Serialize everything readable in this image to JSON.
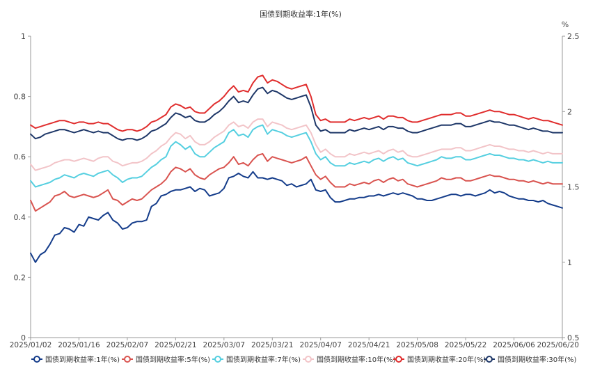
{
  "chart_data": {
    "type": "line",
    "title": "国债到期收益率:1年(%)",
    "left_axis": {
      "ylim": [
        0,
        1
      ],
      "ticks": [
        "0",
        "0.2",
        "0.4",
        "0.6",
        "0.8",
        "1"
      ]
    },
    "right_axis": {
      "unit": "%",
      "ylim": [
        0.5,
        2.5
      ],
      "ticks": [
        "0.5",
        "1",
        "1.5",
        "2",
        "2.5"
      ]
    },
    "x_ticks": [
      "2025/01/02",
      "2025/01/16",
      "2025/02/07",
      "2025/02/21",
      "2025/03/07",
      "2025/03/21",
      "2025/04/07",
      "2025/04/21",
      "2025/05/08",
      "2025/05/22",
      "2025/06/06",
      "2025/06/20"
    ],
    "x_tick_index": [
      0,
      10,
      20,
      30,
      40,
      50,
      60,
      70,
      80,
      90,
      100,
      110
    ],
    "grid": false,
    "legend_position": "bottom",
    "series": [
      {
        "name": "国债到期收益率:1年(%)",
        "axis": "left",
        "color": "#143c8a",
        "values": [
          0.28,
          0.25,
          0.275,
          0.285,
          0.31,
          0.34,
          0.345,
          0.365,
          0.36,
          0.35,
          0.375,
          0.37,
          0.4,
          0.395,
          0.39,
          0.405,
          0.415,
          0.39,
          0.38,
          0.36,
          0.365,
          0.38,
          0.385,
          0.385,
          0.39,
          0.435,
          0.445,
          0.47,
          0.475,
          0.485,
          0.49,
          0.49,
          0.495,
          0.5,
          0.485,
          0.495,
          0.49,
          0.47,
          0.475,
          0.48,
          0.495,
          0.53,
          0.535,
          0.545,
          0.535,
          0.53,
          0.55,
          0.53,
          0.53,
          0.525,
          0.53,
          0.525,
          0.52,
          0.505,
          0.51,
          0.5,
          0.505,
          0.51,
          0.525,
          0.49,
          0.485,
          0.49,
          0.465,
          0.45,
          0.45,
          0.455,
          0.46,
          0.46,
          0.465,
          0.465,
          0.47,
          0.47,
          0.475,
          0.47,
          0.475,
          0.48,
          0.475,
          0.48,
          0.475,
          0.47,
          0.46,
          0.46,
          0.455,
          0.455,
          0.46,
          0.465,
          0.47,
          0.475,
          0.475,
          0.47,
          0.475,
          0.475,
          0.47,
          0.475,
          0.48,
          0.49,
          0.48,
          0.485,
          0.48,
          0.47,
          0.465,
          0.46,
          0.46,
          0.455,
          0.455,
          0.45,
          0.455,
          0.445,
          0.44,
          0.435,
          0.43
        ]
      },
      {
        "name": "国债到期收益率:5年(%)",
        "axis": "right",
        "color": "#d9534f",
        "values": [
          1.41,
          1.34,
          1.36,
          1.38,
          1.4,
          1.44,
          1.45,
          1.47,
          1.44,
          1.43,
          1.44,
          1.45,
          1.44,
          1.43,
          1.44,
          1.46,
          1.48,
          1.42,
          1.41,
          1.38,
          1.4,
          1.42,
          1.41,
          1.42,
          1.45,
          1.48,
          1.5,
          1.52,
          1.55,
          1.6,
          1.63,
          1.62,
          1.6,
          1.62,
          1.58,
          1.56,
          1.55,
          1.58,
          1.6,
          1.62,
          1.63,
          1.66,
          1.7,
          1.65,
          1.66,
          1.64,
          1.68,
          1.71,
          1.72,
          1.67,
          1.7,
          1.69,
          1.68,
          1.67,
          1.66,
          1.67,
          1.68,
          1.7,
          1.64,
          1.58,
          1.55,
          1.57,
          1.53,
          1.5,
          1.5,
          1.5,
          1.52,
          1.51,
          1.52,
          1.53,
          1.52,
          1.54,
          1.55,
          1.53,
          1.55,
          1.56,
          1.54,
          1.55,
          1.52,
          1.51,
          1.5,
          1.51,
          1.52,
          1.53,
          1.54,
          1.56,
          1.55,
          1.55,
          1.56,
          1.56,
          1.54,
          1.54,
          1.55,
          1.56,
          1.57,
          1.58,
          1.57,
          1.57,
          1.56,
          1.55,
          1.55,
          1.54,
          1.54,
          1.53,
          1.54,
          1.53,
          1.52,
          1.53,
          1.52,
          1.52,
          1.52
        ]
      },
      {
        "name": "国债到期收益率:7年(%)",
        "axis": "right",
        "color": "#55cfe0",
        "values": [
          1.54,
          1.5,
          1.51,
          1.52,
          1.53,
          1.55,
          1.56,
          1.58,
          1.57,
          1.56,
          1.58,
          1.59,
          1.58,
          1.57,
          1.59,
          1.6,
          1.61,
          1.58,
          1.56,
          1.53,
          1.55,
          1.56,
          1.56,
          1.57,
          1.6,
          1.63,
          1.65,
          1.68,
          1.7,
          1.77,
          1.8,
          1.78,
          1.75,
          1.77,
          1.72,
          1.7,
          1.7,
          1.73,
          1.76,
          1.78,
          1.8,
          1.86,
          1.88,
          1.84,
          1.85,
          1.83,
          1.88,
          1.9,
          1.91,
          1.85,
          1.88,
          1.87,
          1.86,
          1.84,
          1.83,
          1.84,
          1.85,
          1.86,
          1.8,
          1.72,
          1.68,
          1.7,
          1.66,
          1.64,
          1.64,
          1.64,
          1.66,
          1.65,
          1.66,
          1.67,
          1.66,
          1.68,
          1.69,
          1.67,
          1.69,
          1.7,
          1.68,
          1.69,
          1.66,
          1.65,
          1.64,
          1.65,
          1.66,
          1.67,
          1.68,
          1.7,
          1.69,
          1.69,
          1.7,
          1.7,
          1.68,
          1.68,
          1.69,
          1.7,
          1.71,
          1.72,
          1.71,
          1.71,
          1.7,
          1.69,
          1.69,
          1.68,
          1.68,
          1.67,
          1.68,
          1.67,
          1.66,
          1.67,
          1.66,
          1.66,
          1.66
        ]
      },
      {
        "name": "国债到期收益率:10年(%)",
        "axis": "right",
        "color": "#f2c4c8",
        "values": [
          1.65,
          1.61,
          1.62,
          1.63,
          1.64,
          1.66,
          1.67,
          1.68,
          1.68,
          1.67,
          1.68,
          1.69,
          1.68,
          1.67,
          1.69,
          1.7,
          1.7,
          1.67,
          1.66,
          1.64,
          1.65,
          1.66,
          1.66,
          1.67,
          1.69,
          1.72,
          1.74,
          1.77,
          1.79,
          1.83,
          1.86,
          1.85,
          1.82,
          1.84,
          1.8,
          1.78,
          1.78,
          1.8,
          1.83,
          1.85,
          1.87,
          1.91,
          1.93,
          1.9,
          1.91,
          1.89,
          1.93,
          1.95,
          1.95,
          1.9,
          1.93,
          1.92,
          1.91,
          1.89,
          1.88,
          1.89,
          1.9,
          1.91,
          1.86,
          1.78,
          1.73,
          1.75,
          1.72,
          1.7,
          1.7,
          1.7,
          1.72,
          1.71,
          1.72,
          1.73,
          1.72,
          1.73,
          1.74,
          1.72,
          1.74,
          1.75,
          1.73,
          1.74,
          1.71,
          1.7,
          1.7,
          1.71,
          1.72,
          1.73,
          1.74,
          1.75,
          1.75,
          1.75,
          1.76,
          1.76,
          1.74,
          1.74,
          1.75,
          1.76,
          1.77,
          1.78,
          1.77,
          1.77,
          1.76,
          1.75,
          1.75,
          1.74,
          1.74,
          1.73,
          1.74,
          1.73,
          1.72,
          1.73,
          1.72,
          1.72,
          1.72
        ]
      },
      {
        "name": "国债到期收益率:20年(%)",
        "axis": "right",
        "color": "#e02d2d",
        "values": [
          1.91,
          1.89,
          1.9,
          1.91,
          1.92,
          1.93,
          1.94,
          1.94,
          1.93,
          1.92,
          1.93,
          1.93,
          1.92,
          1.92,
          1.93,
          1.92,
          1.92,
          1.9,
          1.88,
          1.87,
          1.88,
          1.88,
          1.87,
          1.88,
          1.9,
          1.93,
          1.94,
          1.96,
          1.98,
          2.03,
          2.05,
          2.04,
          2.02,
          2.03,
          2.0,
          1.99,
          1.99,
          2.02,
          2.05,
          2.07,
          2.1,
          2.14,
          2.17,
          2.13,
          2.14,
          2.13,
          2.19,
          2.23,
          2.24,
          2.19,
          2.21,
          2.2,
          2.18,
          2.16,
          2.15,
          2.16,
          2.17,
          2.18,
          2.1,
          1.98,
          1.94,
          1.95,
          1.93,
          1.93,
          1.93,
          1.93,
          1.95,
          1.94,
          1.95,
          1.96,
          1.95,
          1.96,
          1.97,
          1.95,
          1.97,
          1.97,
          1.96,
          1.96,
          1.94,
          1.93,
          1.93,
          1.94,
          1.95,
          1.96,
          1.97,
          1.98,
          1.98,
          1.98,
          1.99,
          1.99,
          1.97,
          1.97,
          1.98,
          1.99,
          2.0,
          2.01,
          2.0,
          2.0,
          1.99,
          1.98,
          1.98,
          1.97,
          1.96,
          1.95,
          1.96,
          1.95,
          1.94,
          1.94,
          1.93,
          1.92,
          1.91
        ]
      },
      {
        "name": "国债到期收益率:30年(%)",
        "axis": "right",
        "color": "#1e3768",
        "values": [
          1.85,
          1.82,
          1.83,
          1.85,
          1.86,
          1.87,
          1.88,
          1.88,
          1.87,
          1.86,
          1.87,
          1.88,
          1.87,
          1.86,
          1.87,
          1.86,
          1.86,
          1.84,
          1.82,
          1.81,
          1.82,
          1.82,
          1.81,
          1.82,
          1.84,
          1.87,
          1.88,
          1.9,
          1.92,
          1.96,
          1.99,
          1.98,
          1.96,
          1.97,
          1.94,
          1.93,
          1.93,
          1.95,
          1.98,
          2.0,
          2.03,
          2.07,
          2.1,
          2.06,
          2.07,
          2.06,
          2.11,
          2.15,
          2.16,
          2.12,
          2.14,
          2.13,
          2.11,
          2.09,
          2.08,
          2.09,
          2.1,
          2.11,
          2.03,
          1.91,
          1.87,
          1.88,
          1.86,
          1.86,
          1.86,
          1.86,
          1.88,
          1.87,
          1.88,
          1.89,
          1.88,
          1.89,
          1.9,
          1.88,
          1.9,
          1.9,
          1.89,
          1.89,
          1.87,
          1.86,
          1.86,
          1.87,
          1.88,
          1.89,
          1.9,
          1.91,
          1.91,
          1.91,
          1.92,
          1.92,
          1.9,
          1.9,
          1.91,
          1.92,
          1.93,
          1.94,
          1.93,
          1.93,
          1.92,
          1.91,
          1.91,
          1.9,
          1.89,
          1.88,
          1.89,
          1.88,
          1.87,
          1.87,
          1.86,
          1.86,
          1.86
        ]
      }
    ]
  }
}
